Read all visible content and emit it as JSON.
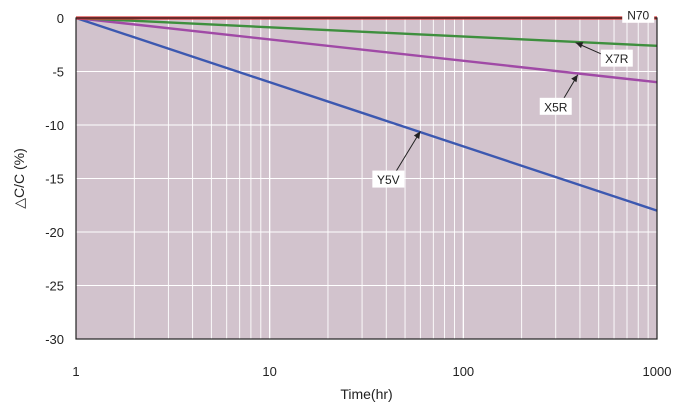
{
  "chart_data": {
    "type": "line",
    "xlabel": "Time(hr)",
    "ylabel": "△C/C (%)",
    "x_scale": "log",
    "xlim": [
      1,
      1000
    ],
    "ylim": [
      -30,
      0
    ],
    "x_ticks": [
      1,
      10,
      100,
      1000
    ],
    "x_tick_labels": [
      "1",
      "10",
      "100",
      "1000"
    ],
    "y_ticks": [
      0,
      -5,
      -10,
      -15,
      -20,
      -25,
      -30
    ],
    "y_tick_labels": [
      "0",
      "-5",
      "-10",
      "-15",
      "-20",
      "-25",
      "-30"
    ],
    "grid": true,
    "plot_background": "#d2c3cd",
    "series": [
      {
        "name": "N70",
        "color": "#d93a3a",
        "label_color": "#d93a3a",
        "x": [
          1,
          1000
        ],
        "y": [
          0,
          0
        ]
      },
      {
        "name": "X7R",
        "color": "#3e8f3e",
        "label_color": "#222222",
        "x": [
          1,
          1000
        ],
        "y": [
          0,
          -2.6
        ]
      },
      {
        "name": "X5R",
        "color": "#a04aa6",
        "label_color": "#222222",
        "x": [
          1,
          1000
        ],
        "y": [
          0,
          -6.0
        ]
      },
      {
        "name": "Y5V",
        "color": "#3c58b0",
        "label_color": "#222222",
        "x": [
          1,
          1000
        ],
        "y": [
          0,
          -18.0
        ]
      }
    ],
    "annotations": [
      {
        "series": "N70",
        "text": "N70",
        "point": [
          1000,
          0
        ],
        "at": [
          800,
          0.3
        ],
        "arrow": false
      },
      {
        "series": "X7R",
        "text": "X7R",
        "point": [
          380,
          -2.3
        ],
        "at": [
          620,
          -3.8
        ],
        "arrow": true
      },
      {
        "series": "X5R",
        "text": "X5R",
        "point": [
          390,
          -5.3
        ],
        "at": [
          300,
          -8.3
        ],
        "arrow": true
      },
      {
        "series": "Y5V",
        "text": "Y5V",
        "point": [
          60,
          -10.6
        ],
        "at": [
          41,
          -15.1
        ],
        "arrow": true
      }
    ]
  }
}
